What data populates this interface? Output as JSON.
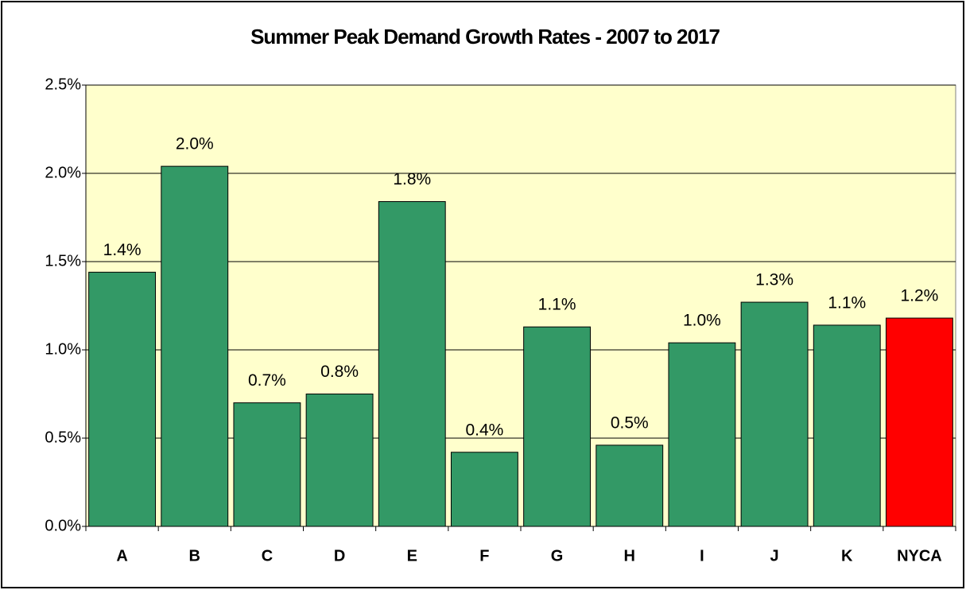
{
  "chart_data": {
    "type": "bar",
    "title": "Summer Peak Demand Growth Rates - 2007 to 2017",
    "categories": [
      "A",
      "B",
      "C",
      "D",
      "E",
      "F",
      "G",
      "H",
      "I",
      "J",
      "K",
      "NYCA"
    ],
    "values": [
      1.44,
      2.04,
      0.7,
      0.75,
      1.84,
      0.42,
      1.13,
      0.46,
      1.04,
      1.27,
      1.14,
      1.18
    ],
    "value_labels": [
      "1.4%",
      "2.0%",
      "0.7%",
      "0.8%",
      "1.8%",
      "0.4%",
      "1.1%",
      "0.5%",
      "1.0%",
      "1.3%",
      "1.1%",
      "1.2%"
    ],
    "colors": [
      "#339966",
      "#339966",
      "#339966",
      "#339966",
      "#339966",
      "#339966",
      "#339966",
      "#339966",
      "#339966",
      "#339966",
      "#339966",
      "#ff0000"
    ],
    "ylim": [
      0,
      2.5
    ],
    "yticks": [
      {
        "value": 0,
        "label": "0.0%"
      },
      {
        "value": 0.5,
        "label": "0.5%"
      },
      {
        "value": 1,
        "label": "1.0%"
      },
      {
        "value": 1.5,
        "label": "1.5%"
      },
      {
        "value": 2,
        "label": "2.0%"
      },
      {
        "value": 2.5,
        "label": "2.5%"
      }
    ],
    "grid": true,
    "plot_background": "#ffffcc"
  }
}
